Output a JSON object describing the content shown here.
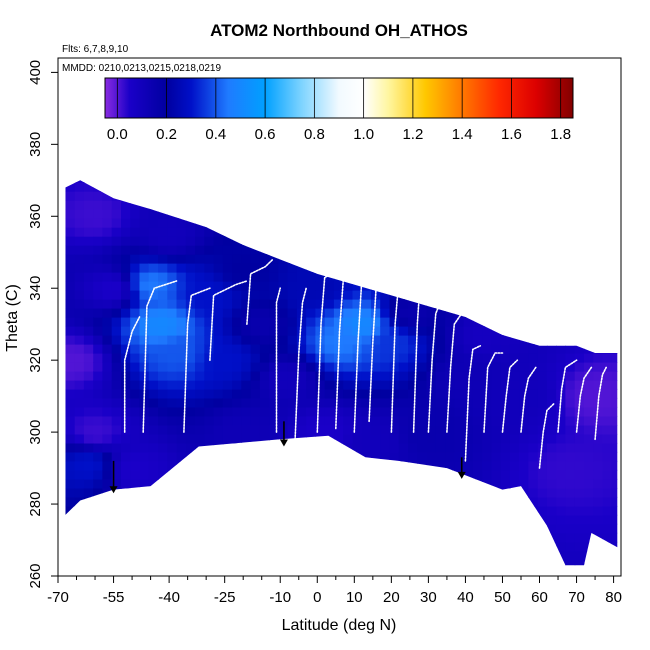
{
  "chart_data": {
    "type": "heatmap",
    "title": "ATOM2 Northbound OH_ATHOS",
    "flights_note": "Flts: 6,7,8,9,10",
    "dates_note": "MMDD: 0210,0213,0215,0218,0219",
    "xlabel": "Latitude (deg N)",
    "ylabel": "Theta (C)",
    "xlim": [
      -70,
      82
    ],
    "ylim": [
      260,
      404
    ],
    "x_tick_labels": [
      "-70",
      "-55",
      "-40",
      "-25",
      "-10",
      "0",
      "10",
      "20",
      "30",
      "40",
      "50",
      "60",
      "70",
      "80"
    ],
    "x_tick_values": [
      -70,
      -55,
      -40,
      -25,
      -10,
      0,
      10,
      20,
      30,
      40,
      50,
      60,
      70,
      80
    ],
    "x_minor_ticks": [
      -65,
      -60,
      -50,
      -45,
      -35,
      -30,
      -20,
      -15,
      -5,
      5,
      15,
      25,
      35,
      45,
      55,
      65,
      75
    ],
    "y_tick_values": [
      260,
      280,
      300,
      320,
      340,
      360,
      380,
      400
    ],
    "y_tick_labels": [
      "260",
      "280",
      "300",
      "320",
      "340",
      "360",
      "380",
      "400"
    ],
    "colorbar": {
      "range": [
        -0.05,
        1.85
      ],
      "tick_values": [
        0.0,
        0.2,
        0.4,
        0.6,
        0.8,
        1.0,
        1.2,
        1.4,
        1.6,
        1.8
      ],
      "tick_labels": [
        "0.0",
        "0.2",
        "0.4",
        "0.6",
        "0.8",
        "1.0",
        "1.2",
        "1.4",
        "1.6",
        "1.8"
      ],
      "stops": [
        {
          "v": -0.05,
          "c": "#8a2be2"
        },
        {
          "v": 0.05,
          "c": "#1a00c8"
        },
        {
          "v": 0.2,
          "c": "#0000a0"
        },
        {
          "v": 0.3,
          "c": "#0010c8"
        },
        {
          "v": 0.45,
          "c": "#1f7bff"
        },
        {
          "v": 0.6,
          "c": "#00a0ff"
        },
        {
          "v": 0.75,
          "c": "#7fd4ff"
        },
        {
          "v": 0.9,
          "c": "#f2faff"
        },
        {
          "v": 1.0,
          "c": "#ffffff"
        },
        {
          "v": 1.1,
          "c": "#fff6a0"
        },
        {
          "v": 1.25,
          "c": "#ffc800"
        },
        {
          "v": 1.4,
          "c": "#ff7800"
        },
        {
          "v": 1.55,
          "c": "#ff2800"
        },
        {
          "v": 1.7,
          "c": "#dc0000"
        },
        {
          "v": 1.85,
          "c": "#820000"
        }
      ]
    },
    "surface_boundary": [
      [
        -68,
        277
      ],
      [
        -64,
        281
      ],
      [
        -55,
        284
      ],
      [
        -45,
        285
      ],
      [
        -32,
        296
      ],
      [
        -10,
        298
      ],
      [
        3,
        299
      ],
      [
        13,
        293
      ],
      [
        22,
        292
      ],
      [
        35,
        290
      ],
      [
        40,
        288
      ],
      [
        50,
        284
      ],
      [
        55,
        285
      ],
      [
        62,
        274
      ],
      [
        67,
        263
      ],
      [
        72,
        263
      ],
      [
        74,
        272
      ],
      [
        81,
        268
      ]
    ],
    "top_boundary": [
      [
        -68,
        368
      ],
      [
        -64,
        370
      ],
      [
        -55,
        365
      ],
      [
        -45,
        362
      ],
      [
        -30,
        357
      ],
      [
        -20,
        352
      ],
      [
        -10,
        348
      ],
      [
        0,
        344
      ],
      [
        10,
        341
      ],
      [
        20,
        338
      ],
      [
        30,
        335
      ],
      [
        40,
        332
      ],
      [
        50,
        327
      ],
      [
        60,
        324
      ],
      [
        70,
        324
      ],
      [
        75,
        322
      ],
      [
        81,
        322
      ]
    ],
    "field_samples": [
      {
        "lat": -66,
        "theta": 320,
        "val": 0.0
      },
      {
        "lat": -60,
        "theta": 300,
        "val": 0.02
      },
      {
        "lat": -55,
        "theta": 340,
        "val": 0.05
      },
      {
        "lat": -45,
        "theta": 341,
        "val": 0.45
      },
      {
        "lat": -42,
        "theta": 330,
        "val": 0.5
      },
      {
        "lat": -38,
        "theta": 322,
        "val": 0.4
      },
      {
        "lat": -30,
        "theta": 338,
        "val": 0.3
      },
      {
        "lat": -25,
        "theta": 320,
        "val": 0.3
      },
      {
        "lat": -15,
        "theta": 330,
        "val": 0.15
      },
      {
        "lat": -8,
        "theta": 315,
        "val": 0.1
      },
      {
        "lat": 2,
        "theta": 300,
        "val": 0.05
      },
      {
        "lat": 6,
        "theta": 325,
        "val": 0.45
      },
      {
        "lat": 12,
        "theta": 330,
        "val": 0.5
      },
      {
        "lat": 20,
        "theta": 325,
        "val": 0.35
      },
      {
        "lat": 30,
        "theta": 300,
        "val": 0.15
      },
      {
        "lat": 40,
        "theta": 315,
        "val": 0.12
      },
      {
        "lat": 55,
        "theta": 310,
        "val": 0.1
      },
      {
        "lat": 68,
        "theta": 290,
        "val": 0.03
      },
      {
        "lat": 75,
        "theta": 310,
        "val": 0.0
      },
      {
        "lat": -60,
        "theta": 360,
        "val": 0.02
      },
      {
        "lat": -40,
        "theta": 355,
        "val": 0.1
      },
      {
        "lat": -20,
        "theta": 345,
        "val": 0.2
      },
      {
        "lat": 0,
        "theta": 340,
        "val": 0.25
      },
      {
        "lat": 25,
        "theta": 333,
        "val": 0.15
      },
      {
        "lat": 45,
        "theta": 327,
        "val": 0.08
      },
      {
        "lat": -50,
        "theta": 290,
        "val": 0.05
      },
      {
        "lat": -20,
        "theta": 300,
        "val": 0.12
      },
      {
        "lat": 15,
        "theta": 298,
        "val": 0.1
      },
      {
        "lat": -62,
        "theta": 291,
        "val": 0.3
      }
    ],
    "flight_profiles": [
      [
        [
          -52,
          300
        ],
        [
          -52,
          320
        ],
        [
          -50,
          328
        ],
        [
          -48,
          332
        ]
      ],
      [
        [
          -47,
          300
        ],
        [
          -46,
          335
        ],
        [
          -44,
          340
        ],
        [
          -38,
          342
        ]
      ],
      [
        [
          -36,
          300
        ],
        [
          -35,
          330
        ],
        [
          -34,
          338
        ],
        [
          -29,
          340
        ]
      ],
      [
        [
          -29,
          320
        ],
        [
          -28,
          338
        ],
        [
          -22,
          341
        ],
        [
          -19,
          342
        ]
      ],
      [
        [
          -19,
          330
        ],
        [
          -18,
          344
        ],
        [
          -14,
          346
        ],
        [
          -12,
          348
        ]
      ],
      [
        [
          -11,
          300
        ],
        [
          -11,
          325
        ],
        [
          -11,
          336
        ],
        [
          -10,
          340
        ]
      ],
      [
        [
          -6,
          298
        ],
        [
          -5,
          322
        ],
        [
          -4,
          336
        ],
        [
          -3,
          340
        ]
      ],
      [
        [
          0,
          300
        ],
        [
          1,
          330
        ],
        [
          2,
          343
        ],
        [
          4,
          344
        ]
      ],
      [
        [
          5,
          301
        ],
        [
          6,
          328
        ],
        [
          7,
          342
        ],
        [
          8,
          343
        ]
      ],
      [
        [
          10,
          300
        ],
        [
          11,
          325
        ],
        [
          12,
          342
        ],
        [
          13,
          344
        ]
      ],
      [
        [
          14,
          303
        ],
        [
          15,
          325
        ],
        [
          16,
          342
        ],
        [
          18,
          343
        ]
      ],
      [
        [
          20,
          300
        ],
        [
          21,
          330
        ],
        [
          22,
          342
        ],
        [
          25,
          344
        ]
      ],
      [
        [
          26,
          300
        ],
        [
          27,
          330
        ],
        [
          28,
          345
        ],
        [
          30,
          346
        ]
      ],
      [
        [
          30,
          300
        ],
        [
          31,
          320
        ],
        [
          32,
          333
        ],
        [
          34,
          338
        ]
      ],
      [
        [
          35,
          300
        ],
        [
          36,
          318
        ],
        [
          37,
          330
        ],
        [
          39,
          333
        ]
      ],
      [
        [
          40,
          292
        ],
        [
          41,
          315
        ],
        [
          42,
          323
        ],
        [
          44,
          324
        ]
      ],
      [
        [
          45,
          300
        ],
        [
          46,
          318
        ],
        [
          48,
          322
        ],
        [
          50,
          322
        ]
      ],
      [
        [
          50,
          300
        ],
        [
          51,
          310
        ],
        [
          52,
          318
        ],
        [
          54,
          320
        ]
      ],
      [
        [
          55,
          300
        ],
        [
          56,
          310
        ],
        [
          57,
          315
        ],
        [
          59,
          318
        ]
      ],
      [
        [
          60,
          290
        ],
        [
          61,
          300
        ],
        [
          62,
          306
        ],
        [
          64,
          308
        ]
      ],
      [
        [
          65,
          300
        ],
        [
          66,
          312
        ],
        [
          67,
          318
        ],
        [
          70,
          320
        ]
      ],
      [
        [
          70,
          300
        ],
        [
          71,
          310
        ],
        [
          72,
          315
        ],
        [
          74,
          318
        ]
      ],
      [
        [
          75,
          298
        ],
        [
          76,
          310
        ],
        [
          77,
          316
        ],
        [
          78,
          318
        ]
      ]
    ],
    "arrows": [
      {
        "lat": -55,
        "from": 292,
        "to": 283
      },
      {
        "lat": -9,
        "from": 303,
        "to": 296
      },
      {
        "lat": 39,
        "from": 293,
        "to": 287
      }
    ]
  }
}
